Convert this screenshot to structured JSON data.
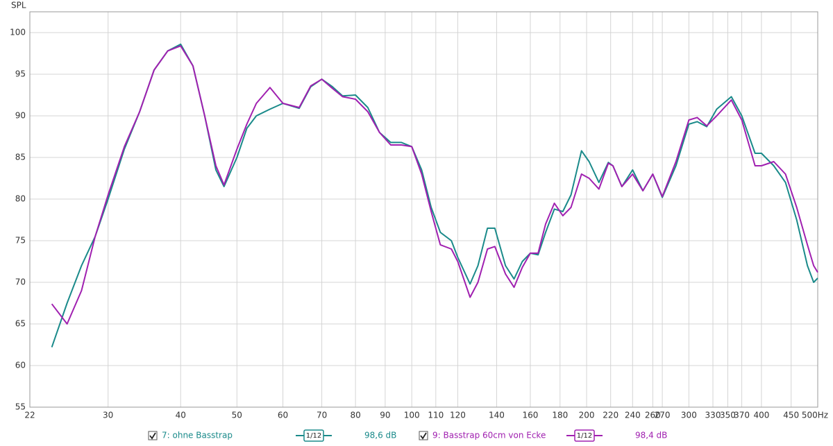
{
  "chart_data": {
    "type": "line",
    "y_label": "SPL",
    "xlog": true,
    "grid": true,
    "xlim": [
      22,
      500
    ],
    "ylim": [
      55,
      102.5
    ],
    "yticks": [
      55,
      60,
      65,
      70,
      75,
      80,
      85,
      90,
      95,
      100
    ],
    "xticks": [
      22,
      30,
      40,
      50,
      60,
      70,
      80,
      90,
      100,
      110,
      120,
      140,
      160,
      180,
      200,
      220,
      240,
      260,
      270,
      300,
      330,
      350,
      370,
      400,
      450,
      {
        "value": 500,
        "label": "500Hz"
      }
    ],
    "x": [
      24,
      25.5,
      27,
      28.5,
      30,
      32,
      34,
      36,
      38,
      40,
      42,
      44,
      46,
      47.5,
      50,
      52,
      54,
      57,
      60,
      64,
      67,
      70,
      73,
      76,
      80,
      84,
      88,
      92,
      96,
      100,
      104,
      108,
      112,
      117,
      120,
      126,
      130,
      135,
      139,
      145,
      150,
      155,
      160,
      165,
      170,
      176,
      182,
      188,
      196,
      202,
      210,
      218,
      222,
      230,
      240,
      250,
      260,
      270,
      285,
      300,
      310,
      322,
      335,
      355,
      370,
      390,
      400,
      420,
      440,
      460,
      480,
      492,
      500
    ],
    "series": [
      {
        "name": "7: ohne Basstrap",
        "color": "#1a8a8a",
        "smoothing": "1/12",
        "level": "98,6 dB",
        "values": [
          62.2,
          67.5,
          72,
          75.5,
          80,
          86,
          90.5,
          95.5,
          97.8,
          98.6,
          96,
          90,
          83.5,
          81.5,
          85,
          88.5,
          90,
          90.8,
          91.5,
          90.9,
          93.5,
          94.4,
          93.5,
          92.4,
          92.5,
          91,
          88,
          86.8,
          86.8,
          86.3,
          83.5,
          79,
          76,
          75,
          73,
          69.8,
          72,
          76.5,
          76.5,
          72,
          70.4,
          72.5,
          73.5,
          73.3,
          76,
          78.8,
          78.5,
          80.5,
          85.8,
          84.5,
          82,
          84.4,
          84,
          81.5,
          83.5,
          81,
          83,
          80.2,
          84,
          89,
          89.3,
          88.7,
          90.8,
          92.3,
          90,
          85.5,
          85.5,
          84,
          82,
          77.5,
          72,
          70,
          70.5
        ]
      },
      {
        "name": "9: Basstrap 60cm  von Ecke",
        "color": "#a020b0",
        "smoothing": "1/12",
        "level": "98,4 dB",
        "values": [
          67.4,
          65,
          69,
          75.5,
          80.5,
          86.3,
          90.5,
          95.5,
          97.8,
          98.4,
          96,
          90,
          84,
          81.7,
          86,
          89,
          91.5,
          93.4,
          91.5,
          91,
          93.6,
          94.4,
          93.3,
          92.3,
          92,
          90.5,
          88,
          86.5,
          86.5,
          86.3,
          83,
          78.5,
          74.5,
          74,
          72.5,
          68.2,
          70,
          74,
          74.3,
          71,
          69.4,
          71.8,
          73.5,
          73.5,
          77,
          79.5,
          78,
          79,
          83,
          82.5,
          81.2,
          84.3,
          84,
          81.5,
          83,
          81,
          83,
          80.3,
          84.5,
          89.5,
          89.8,
          88.8,
          90,
          91.9,
          89.5,
          84,
          84,
          84.5,
          83,
          79,
          74.5,
          72,
          71.2
        ]
      }
    ]
  }
}
